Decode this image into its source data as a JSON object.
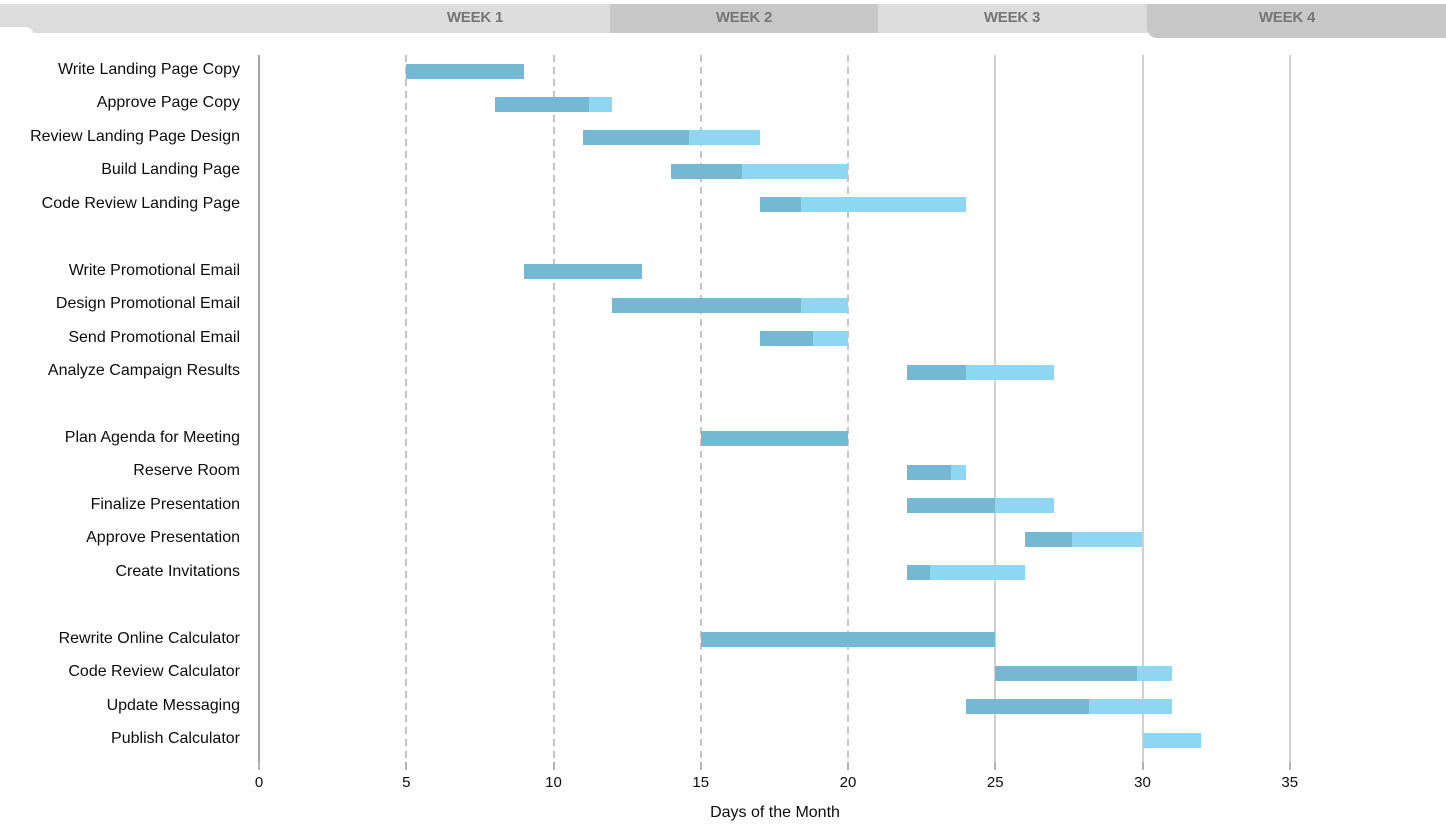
{
  "header": {
    "weeks": [
      {
        "label": "WEEK 1",
        "shaded": false
      },
      {
        "label": "WEEK 2",
        "shaded": true
      },
      {
        "label": "WEEK 3",
        "shaded": false
      },
      {
        "label": "WEEK 4",
        "shaded": true
      }
    ]
  },
  "colors": {
    "bar_complete": "#74b8d3",
    "bar_remaining": "#8ed7f2",
    "header_light": "#dcdcdc",
    "header_dark": "#c7c7c7",
    "header_text": "#757575",
    "gridline_dashed": "#c4c4c4",
    "gridline_solid": "#d0d0d0",
    "gridline_stub": "#b3b3b3",
    "axis_line": "#a3a3a3"
  },
  "chart_data": {
    "type": "bar",
    "subtype": "gantt",
    "title": "",
    "xlabel": "Days of the Month",
    "ylabel": "",
    "xlim": [
      0,
      40
    ],
    "x_ticks": [
      0,
      5,
      10,
      15,
      20,
      25,
      30,
      35
    ],
    "grid": "vertical",
    "legend": "none",
    "bar_semantics": {
      "dark_segment": "completed portion",
      "light_segment": "remaining portion"
    },
    "groups": [
      {
        "tasks": [
          {
            "name": "Write Landing Page Copy",
            "start": 5,
            "end": 9,
            "percent_complete": 100
          },
          {
            "name": "Approve Page Copy",
            "start": 8,
            "end": 12,
            "percent_complete": 80
          },
          {
            "name": "Review Landing Page Design",
            "start": 11,
            "end": 17,
            "percent_complete": 60
          },
          {
            "name": "Build Landing Page",
            "start": 14,
            "end": 20,
            "percent_complete": 40
          },
          {
            "name": "Code Review Landing Page",
            "start": 17,
            "end": 24,
            "percent_complete": 20
          }
        ]
      },
      {
        "tasks": [
          {
            "name": "Write Promotional Email",
            "start": 9,
            "end": 13,
            "percent_complete": 100
          },
          {
            "name": "Design Promotional Email",
            "start": 12,
            "end": 20,
            "percent_complete": 80
          },
          {
            "name": "Send Promotional Email",
            "start": 17,
            "end": 20,
            "percent_complete": 60
          },
          {
            "name": "Analyze Campaign Results",
            "start": 22,
            "end": 27,
            "percent_complete": 40
          }
        ]
      },
      {
        "tasks": [
          {
            "name": "Plan Agenda for Meeting",
            "start": 15,
            "end": 20,
            "percent_complete": 100
          },
          {
            "name": "Reserve Room",
            "start": 22,
            "end": 24,
            "percent_complete": 75
          },
          {
            "name": "Finalize Presentation",
            "start": 22,
            "end": 27,
            "percent_complete": 60
          },
          {
            "name": "Approve Presentation",
            "start": 26,
            "end": 30,
            "percent_complete": 40
          },
          {
            "name": "Create Invitations",
            "start": 22,
            "end": 26,
            "percent_complete": 20
          }
        ]
      },
      {
        "tasks": [
          {
            "name": "Rewrite Online Calculator",
            "start": 15,
            "end": 25,
            "percent_complete": 100
          },
          {
            "name": "Code Review Calculator",
            "start": 25,
            "end": 31,
            "percent_complete": 80
          },
          {
            "name": "Update Messaging",
            "start": 24,
            "end": 31,
            "percent_complete": 60
          },
          {
            "name": "Publish Calculator",
            "start": 30,
            "end": 32,
            "percent_complete": 0
          }
        ]
      }
    ]
  }
}
